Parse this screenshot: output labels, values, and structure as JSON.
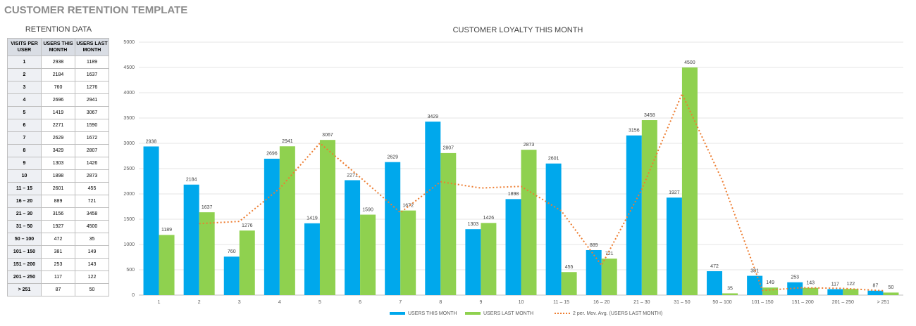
{
  "page_title": "CUSTOMER RETENTION TEMPLATE",
  "table": {
    "title": "RETENTION DATA",
    "header": [
      "VISITS PER USER",
      "USERS THIS MONTH",
      "USERS LAST MONTH"
    ],
    "rows": [
      [
        "1",
        2938,
        1189
      ],
      [
        "2",
        2184,
        1637
      ],
      [
        "3",
        760,
        1276
      ],
      [
        "4",
        2696,
        2941
      ],
      [
        "5",
        1419,
        3067
      ],
      [
        "6",
        2271,
        1590
      ],
      [
        "7",
        2629,
        1672
      ],
      [
        "8",
        3429,
        2807
      ],
      [
        "9",
        1303,
        1426
      ],
      [
        "10",
        1898,
        2873
      ],
      [
        "11 – 15",
        2601,
        455
      ],
      [
        "16 – 20",
        889,
        721
      ],
      [
        "21 – 30",
        3156,
        3458
      ],
      [
        "31 – 50",
        1927,
        4500
      ],
      [
        "50 – 100",
        472,
        35
      ],
      [
        "101 – 150",
        381,
        149
      ],
      [
        "151 – 200",
        253,
        143
      ],
      [
        "201 – 250",
        117,
        122
      ],
      [
        "> 251",
        87,
        50
      ]
    ]
  },
  "chart_data": {
    "type": "bar",
    "title": "CUSTOMER LOYALTY THIS MONTH",
    "categories": [
      "1",
      "2",
      "3",
      "4",
      "5",
      "6",
      "7",
      "8",
      "9",
      "10",
      "11 – 15",
      "16 – 20",
      "21 – 30",
      "31 – 50",
      "50 – 100",
      "101 – 150",
      "151 – 200",
      "201 – 250",
      "> 251"
    ],
    "series": [
      {
        "name": "USERS THIS MONTH",
        "type": "bar",
        "color": "#00a8ec",
        "values": [
          2938,
          2184,
          760,
          2696,
          1419,
          2271,
          2629,
          3429,
          1303,
          1898,
          2601,
          889,
          3156,
          1927,
          472,
          381,
          253,
          117,
          87
        ]
      },
      {
        "name": "USERS LAST MONTH",
        "type": "bar",
        "color": "#8fd14f",
        "values": [
          1189,
          1637,
          1276,
          2941,
          3067,
          1590,
          1672,
          2807,
          1426,
          2873,
          455,
          721,
          3458,
          4500,
          35,
          149,
          143,
          122,
          50
        ]
      },
      {
        "name": "2 per. Mov. Avg. (USERS LAST MONTH)",
        "type": "line",
        "color": "#ed7d31",
        "values": [
          null,
          1413,
          1456.5,
          2108.5,
          3004,
          2328.5,
          1631,
          2239.5,
          2116.5,
          2149.5,
          1664,
          588,
          2089.5,
          3979,
          2267.5,
          92,
          146,
          132.5,
          86
        ]
      }
    ],
    "ylim": [
      0,
      5000
    ],
    "yticks": [
      0,
      500,
      1000,
      1500,
      2000,
      2500,
      3000,
      3500,
      4000,
      4500,
      5000
    ],
    "grid": true,
    "legend": "bottom"
  }
}
